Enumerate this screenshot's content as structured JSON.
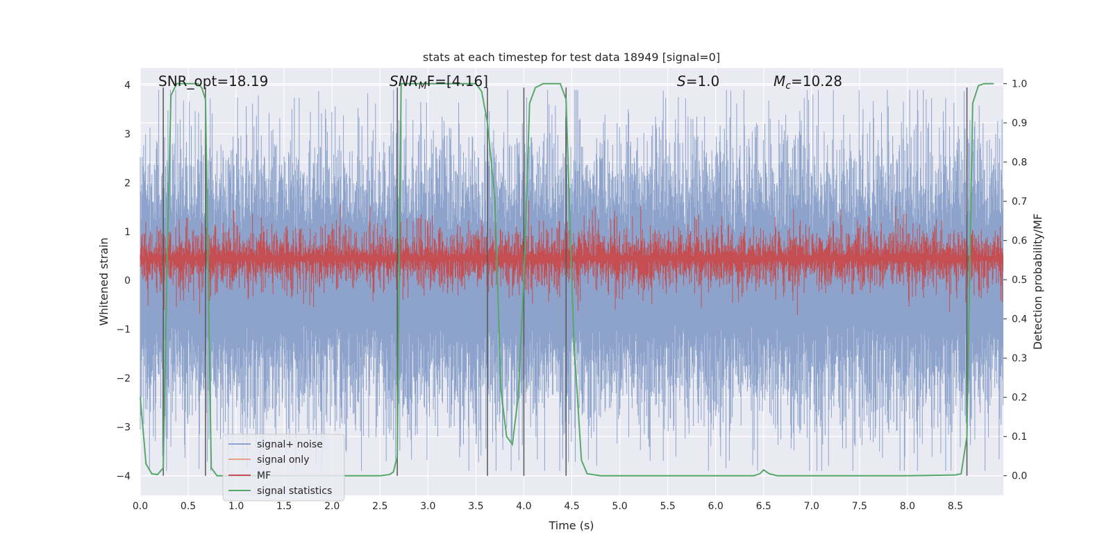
{
  "chart_data": {
    "type": "line",
    "title": "stats at each timestep for test data 18949 [signal=0]",
    "xlabel": "Time (s)",
    "ylabel_left": "Whitened strain",
    "ylabel_right": "Detection probability/MF",
    "xlim": [
      0.0,
      9.0
    ],
    "ylim_left": [
      -4.4,
      4.35
    ],
    "ylim_right": [
      -0.05,
      1.04
    ],
    "xticks": [
      0.0,
      0.5,
      1.0,
      1.5,
      2.0,
      2.5,
      3.0,
      3.5,
      4.0,
      4.5,
      5.0,
      5.5,
      6.0,
      6.5,
      7.0,
      7.5,
      8.0,
      8.5
    ],
    "xtick_labels": [
      "0.0",
      "0.5",
      "1.0",
      "1.5",
      "2.0",
      "2.5",
      "3.0",
      "3.5",
      "4.0",
      "4.5",
      "5.0",
      "5.5",
      "6.0",
      "6.5",
      "7.0",
      "7.5",
      "8.0",
      "8.5"
    ],
    "yticks_left": [
      4,
      3,
      2,
      1,
      0,
      -1,
      -2,
      -3,
      -4
    ],
    "ytick_labels_left": [
      "4",
      "3",
      "2",
      "1",
      "0",
      "−1",
      "−2",
      "−3",
      "−4"
    ],
    "yticks_right": [
      1.0,
      0.9,
      0.8,
      0.7,
      0.6,
      0.5,
      0.4,
      0.3,
      0.2,
      0.1,
      0.0
    ],
    "ytick_labels_right": [
      "1.0",
      "0.9",
      "0.8",
      "0.7",
      "0.6",
      "0.5",
      "0.4",
      "0.3",
      "0.2",
      "0.1",
      "0.0"
    ],
    "grid": true,
    "legend_position": "lower-left",
    "annotations": {
      "snr_opt": "SNR_opt=18.19",
      "snr_mf_main": "SNR",
      "snr_mf_sub": "M",
      "snr_mf_rest": "F=[4.16]",
      "s_label": "S",
      "s_value": "=1.0",
      "mc_label": "M",
      "mc_sub": "c",
      "mc_value": "=10.28"
    },
    "vertical_lines_x": [
      0.24,
      0.68,
      2.68,
      3.62,
      4.0,
      4.44,
      8.62
    ],
    "series": [
      {
        "name": "signal+ noise",
        "color": "#8da3cb",
        "axis": "left",
        "style": "dense noise",
        "amplitude_typical": 1.8,
        "amplitude_peak": 3.9
      },
      {
        "name": "signal only",
        "color": "#e8a088",
        "axis": "left",
        "style": "flat",
        "values": []
      },
      {
        "name": "MF",
        "color": "#c44e52",
        "axis": "right",
        "style": "dense noise band",
        "center": 0.555,
        "band_low": 0.505,
        "band_high": 0.605
      },
      {
        "name": "signal statistics",
        "color": "#55a868",
        "axis": "right",
        "x": [
          0.0,
          0.06,
          0.12,
          0.18,
          0.24,
          0.28,
          0.32,
          0.38,
          0.44,
          0.52,
          0.6,
          0.64,
          0.68,
          0.74,
          0.8,
          0.86,
          1.0,
          1.5,
          2.0,
          2.5,
          2.6,
          2.64,
          2.68,
          2.72,
          2.76,
          2.8,
          3.0,
          3.3,
          3.5,
          3.56,
          3.62,
          3.7,
          3.76,
          3.82,
          3.88,
          3.94,
          4.0,
          4.06,
          4.12,
          4.2,
          4.3,
          4.38,
          4.44,
          4.52,
          4.6,
          4.66,
          4.8,
          5.5,
          6.0,
          6.4,
          6.46,
          6.5,
          6.56,
          6.64,
          7.0,
          8.0,
          8.5,
          8.56,
          8.62,
          8.68,
          8.74,
          8.8,
          8.9
        ],
        "values": [
          0.2,
          0.03,
          0.005,
          0.003,
          0.02,
          0.55,
          0.97,
          1.0,
          1.0,
          1.0,
          1.0,
          0.99,
          0.96,
          0.02,
          0.0,
          0.0,
          0.0,
          0.0,
          0.0,
          0.0,
          0.003,
          0.01,
          0.05,
          1.0,
          1.0,
          1.0,
          1.0,
          1.0,
          1.0,
          0.98,
          0.9,
          0.7,
          0.22,
          0.1,
          0.08,
          0.2,
          0.5,
          0.95,
          0.99,
          1.0,
          1.0,
          1.0,
          0.96,
          0.35,
          0.04,
          0.005,
          0.0,
          0.0,
          0.0,
          0.0,
          0.005,
          0.015,
          0.005,
          0.0,
          0.0,
          0.0,
          0.002,
          0.005,
          0.1,
          0.95,
          0.995,
          1.0,
          1.0
        ]
      }
    ]
  }
}
